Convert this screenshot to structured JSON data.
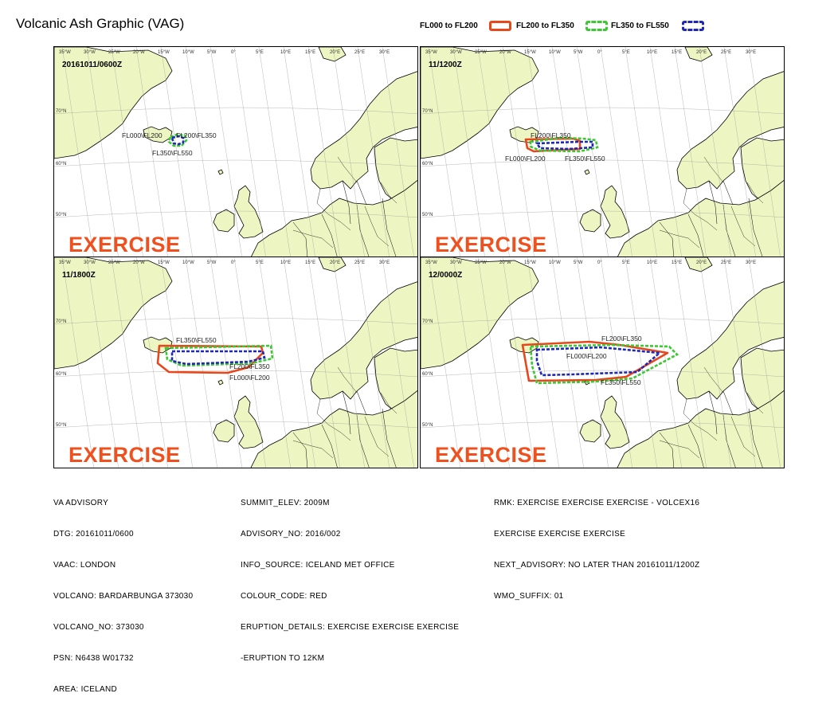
{
  "title": "Volcanic Ash Graphic (VAG)",
  "legend": [
    {
      "label": "FL000 to FL200",
      "color": "#e8471c"
    },
    {
      "label": "FL200 to FL350",
      "color": "#3cc832"
    },
    {
      "label": "FL350 to FL550",
      "color": "#1e28b4"
    }
  ],
  "colors": {
    "land": "#edf6c2",
    "exercise": "#f0501e"
  },
  "grid_labels": {
    "lon": [
      "35°W",
      "30°W",
      "25°W",
      "20°W",
      "15°W",
      "10°W",
      "5°W",
      "0°",
      "5°E",
      "10°E",
      "15°E",
      "20°E",
      "25°E",
      "30°E"
    ],
    "lat": [
      "70°N",
      "60°N",
      "50°N"
    ]
  },
  "exercise_label": "EXERCISE",
  "panels": [
    {
      "time": "20161011/0600Z",
      "labels": [
        {
          "text": "FL000\\FL200"
        },
        {
          "text": "FL200\\FL350"
        },
        {
          "text": "FL350\\FL550"
        }
      ]
    },
    {
      "time": "11/1200Z",
      "labels": [
        {
          "text": "FL200\\FL350"
        },
        {
          "text": "FL000\\FL200"
        },
        {
          "text": "FL350\\FL550"
        }
      ]
    },
    {
      "time": "11/1800Z",
      "labels": [
        {
          "text": "FL350\\FL550"
        },
        {
          "text": "FL200\\FL350"
        },
        {
          "text": "FL000\\FL200"
        }
      ]
    },
    {
      "time": "12/0000Z",
      "labels": [
        {
          "text": "FL200\\FL350"
        },
        {
          "text": "FL000\\FL200"
        },
        {
          "text": "FL350\\FL550"
        }
      ]
    }
  ],
  "footer": {
    "col1": [
      "VA ADVISORY",
      "DTG: 20161011/0600",
      "VAAC: LONDON",
      "VOLCANO: BARDARBUNGA 373030",
      "VOLCANO_NO: 373030",
      "PSN: N6438 W01732",
      "AREA: ICELAND"
    ],
    "col2": [
      "SUMMIT_ELEV: 2009M",
      "ADVISORY_NO: 2016/002",
      "INFO_SOURCE: ICELAND MET OFFICE",
      "COLOUR_CODE: RED",
      "ERUPTION_DETAILS: EXERCISE EXERCISE EXERCISE",
      "-ERUPTION TO 12KM"
    ],
    "col3": [
      "RMK: EXERCISE EXERCISE EXERCISE - VOLCEX16",
      "EXERCISE EXERCISE EXERCISE",
      "NEXT_ADVISORY: NO LATER THAN 20161011/1200Z",
      "WMO_SUFFIX: 01"
    ]
  }
}
